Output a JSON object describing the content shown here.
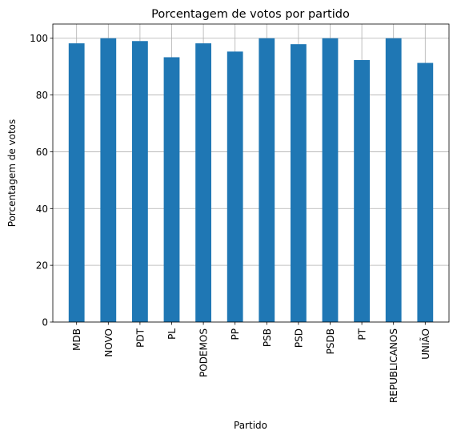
{
  "chart_data": {
    "type": "bar",
    "title": "Porcentagem de votos por partido",
    "xlabel": "Partido",
    "ylabel": "Porcentagem de votos",
    "categories": [
      "MDB",
      "NOVO",
      "PDT",
      "PL",
      "PODEMOS",
      "PP",
      "PSB",
      "PSD",
      "PSDB",
      "PT",
      "REPUBLICANOS",
      "UNIÃO"
    ],
    "values": [
      98.2,
      100,
      99,
      93.3,
      98.2,
      95.3,
      100,
      97.9,
      100,
      92.3,
      100,
      91.3
    ],
    "ylim": [
      0,
      105
    ],
    "yticks": [
      0,
      20,
      40,
      60,
      80,
      100
    ],
    "grid": true,
    "legend": "none",
    "bar_color": "#1f77b4"
  }
}
